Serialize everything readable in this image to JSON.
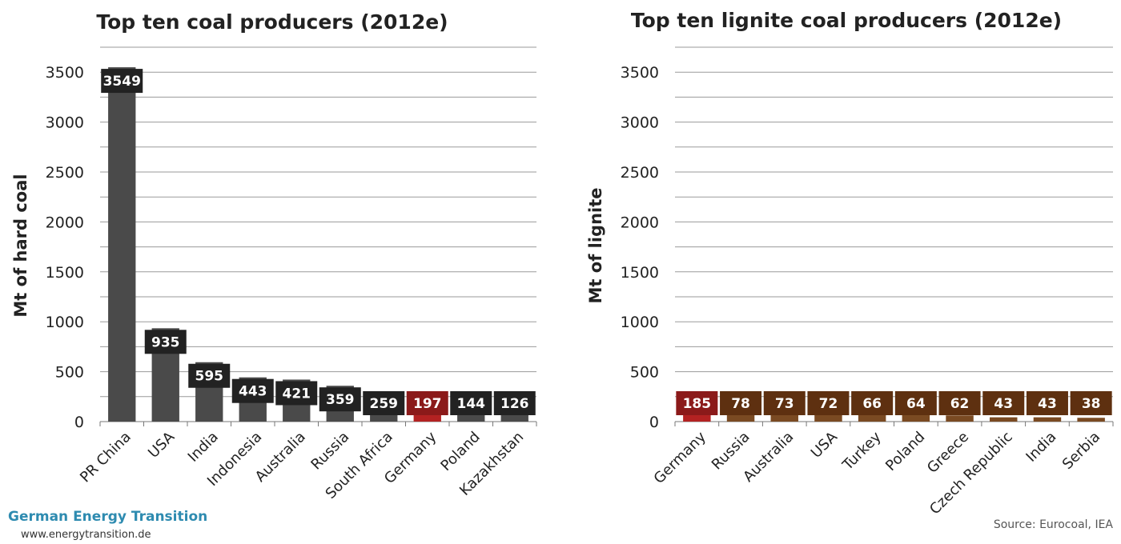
{
  "brand": {
    "name": "German Energy Transition",
    "url": "www.energytransition.de"
  },
  "source": "Source: Eurocoal, IEA",
  "colors": {
    "default_bar": "#4a4a4a",
    "default_label": "#222222",
    "highlight": "#b32222",
    "highlight_label": "#8b1a1a",
    "lignite_bar": "#7a4a22",
    "lignite_label": "#5e3010",
    "grid": "#9a9a9a"
  },
  "chart_data": [
    {
      "type": "bar",
      "title": "Top ten coal producers (2012e)",
      "ylabel": "Mt of hard coal",
      "xlabel": "",
      "ylim": [
        0,
        3750
      ],
      "yticks": [
        0,
        500,
        1000,
        1500,
        2000,
        2500,
        3000,
        3500
      ],
      "grid": true,
      "categories": [
        "PR China",
        "USA",
        "India",
        "Indonesia",
        "Australia",
        "Russia",
        "South Africa",
        "Germany",
        "Poland",
        "Kazakhstan"
      ],
      "values": [
        3549,
        935,
        595,
        443,
        421,
        359,
        259,
        197,
        144,
        126
      ],
      "highlight": "Germany"
    },
    {
      "type": "bar",
      "title": "Top ten lignite coal producers (2012e)",
      "ylabel": "Mt of lignite",
      "xlabel": "",
      "ylim": [
        0,
        3750
      ],
      "yticks": [
        0,
        500,
        1000,
        1500,
        2000,
        2500,
        3000,
        3500
      ],
      "grid": true,
      "categories": [
        "Germany",
        "Russia",
        "Australia",
        "USA",
        "Turkey",
        "Poland",
        "Greece",
        "Czech Republic",
        "India",
        "Serbia"
      ],
      "values": [
        185,
        78,
        73,
        72,
        66,
        64,
        62,
        43,
        43,
        38
      ],
      "highlight": "Germany"
    }
  ]
}
